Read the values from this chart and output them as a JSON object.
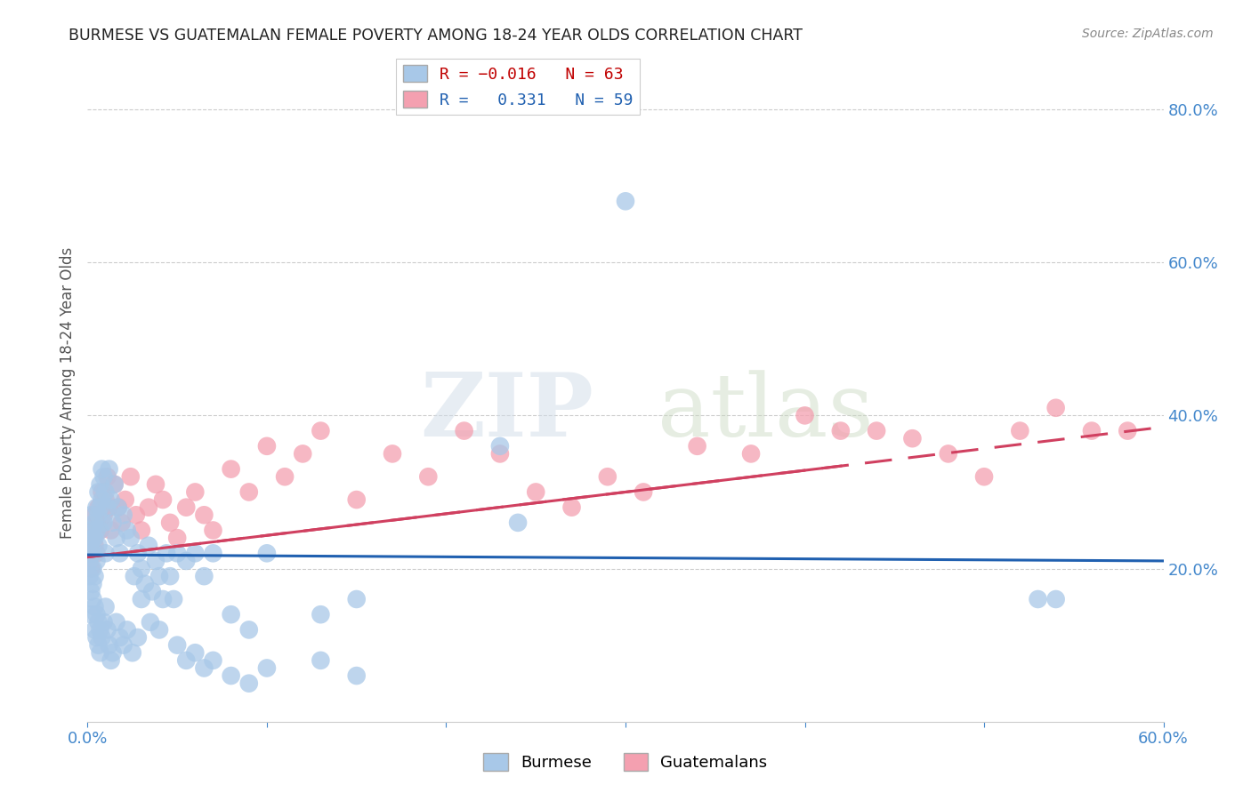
{
  "title": "BURMESE VS GUATEMALAN FEMALE POVERTY AMONG 18-24 YEAR OLDS CORRELATION CHART",
  "source": "Source: ZipAtlas.com",
  "ylabel": "Female Poverty Among 18-24 Year Olds",
  "xlim": [
    0.0,
    0.6
  ],
  "ylim": [
    0.0,
    0.86
  ],
  "xticks": [
    0.0,
    0.1,
    0.2,
    0.3,
    0.4,
    0.5,
    0.6
  ],
  "xticklabels": [
    "0.0%",
    "",
    "",
    "",
    "",
    "",
    "60.0%"
  ],
  "yticks_right": [
    0.2,
    0.4,
    0.6,
    0.8
  ],
  "ytick_right_labels": [
    "20.0%",
    "40.0%",
    "60.0%",
    "80.0%"
  ],
  "burmese_R": -0.016,
  "burmese_N": 63,
  "guatemalan_R": 0.331,
  "guatemalan_N": 59,
  "burmese_color": "#a8c8e8",
  "guatemalan_color": "#f4a0b0",
  "burmese_line_color": "#2060b0",
  "guatemalan_line_color": "#d04060",
  "legend_label_burmese": "Burmese",
  "legend_label_guatemalan": "Guatemalans",
  "watermark_zip": "ZIP",
  "watermark_atlas": "atlas",
  "burmese_x": [
    0.001,
    0.001,
    0.002,
    0.002,
    0.002,
    0.003,
    0.003,
    0.003,
    0.004,
    0.004,
    0.004,
    0.005,
    0.005,
    0.005,
    0.006,
    0.006,
    0.006,
    0.007,
    0.007,
    0.007,
    0.008,
    0.008,
    0.009,
    0.009,
    0.01,
    0.01,
    0.011,
    0.012,
    0.013,
    0.014,
    0.015,
    0.016,
    0.017,
    0.018,
    0.02,
    0.022,
    0.024,
    0.026,
    0.028,
    0.03,
    0.032,
    0.034,
    0.036,
    0.038,
    0.04,
    0.042,
    0.044,
    0.046,
    0.048,
    0.05,
    0.055,
    0.06,
    0.065,
    0.07,
    0.08,
    0.09,
    0.1,
    0.13,
    0.15,
    0.23,
    0.24,
    0.3,
    0.54
  ],
  "burmese_y": [
    0.22,
    0.21,
    0.25,
    0.23,
    0.27,
    0.24,
    0.22,
    0.2,
    0.26,
    0.24,
    0.19,
    0.28,
    0.25,
    0.21,
    0.3,
    0.27,
    0.23,
    0.31,
    0.28,
    0.25,
    0.33,
    0.29,
    0.32,
    0.26,
    0.3,
    0.22,
    0.28,
    0.33,
    0.29,
    0.26,
    0.31,
    0.24,
    0.28,
    0.22,
    0.27,
    0.25,
    0.24,
    0.19,
    0.22,
    0.2,
    0.18,
    0.23,
    0.17,
    0.21,
    0.19,
    0.16,
    0.22,
    0.19,
    0.16,
    0.22,
    0.21,
    0.22,
    0.19,
    0.22,
    0.14,
    0.12,
    0.22,
    0.14,
    0.16,
    0.36,
    0.26,
    0.68,
    0.16
  ],
  "burmese_x_low": [
    0.001,
    0.002,
    0.002,
    0.003,
    0.003,
    0.004,
    0.004,
    0.005,
    0.005,
    0.006,
    0.006,
    0.007,
    0.007,
    0.008,
    0.009,
    0.01,
    0.011,
    0.012,
    0.013,
    0.014,
    0.016,
    0.018,
    0.02,
    0.022,
    0.025,
    0.028,
    0.03,
    0.035,
    0.04,
    0.05,
    0.055,
    0.06,
    0.065,
    0.07,
    0.08,
    0.09,
    0.1,
    0.13,
    0.15,
    0.53
  ],
  "burmese_y_low": [
    0.19,
    0.17,
    0.14,
    0.16,
    0.18,
    0.15,
    0.12,
    0.14,
    0.11,
    0.13,
    0.1,
    0.12,
    0.09,
    0.11,
    0.13,
    0.15,
    0.12,
    0.1,
    0.08,
    0.09,
    0.13,
    0.11,
    0.1,
    0.12,
    0.09,
    0.11,
    0.16,
    0.13,
    0.12,
    0.1,
    0.08,
    0.09,
    0.07,
    0.08,
    0.06,
    0.05,
    0.07,
    0.08,
    0.06,
    0.16
  ],
  "guatemalan_x": [
    0.001,
    0.002,
    0.002,
    0.003,
    0.004,
    0.004,
    0.005,
    0.005,
    0.006,
    0.007,
    0.008,
    0.009,
    0.01,
    0.011,
    0.012,
    0.013,
    0.015,
    0.017,
    0.019,
    0.021,
    0.024,
    0.027,
    0.03,
    0.034,
    0.038,
    0.042,
    0.046,
    0.05,
    0.055,
    0.06,
    0.065,
    0.07,
    0.08,
    0.09,
    0.1,
    0.11,
    0.12,
    0.13,
    0.15,
    0.17,
    0.19,
    0.21,
    0.23,
    0.25,
    0.27,
    0.29,
    0.31,
    0.34,
    0.37,
    0.4,
    0.42,
    0.44,
    0.46,
    0.48,
    0.5,
    0.52,
    0.54,
    0.56,
    0.58
  ],
  "guatemalan_y": [
    0.22,
    0.25,
    0.2,
    0.24,
    0.27,
    0.23,
    0.26,
    0.22,
    0.28,
    0.25,
    0.3,
    0.27,
    0.29,
    0.32,
    0.28,
    0.25,
    0.31,
    0.28,
    0.26,
    0.29,
    0.32,
    0.27,
    0.25,
    0.28,
    0.31,
    0.29,
    0.26,
    0.24,
    0.28,
    0.3,
    0.27,
    0.25,
    0.33,
    0.3,
    0.36,
    0.32,
    0.35,
    0.38,
    0.29,
    0.35,
    0.32,
    0.38,
    0.35,
    0.3,
    0.28,
    0.32,
    0.3,
    0.36,
    0.35,
    0.4,
    0.38,
    0.38,
    0.37,
    0.35,
    0.32,
    0.38,
    0.41,
    0.38,
    0.38
  ],
  "burmese_trend_x": [
    0.0,
    0.6
  ],
  "burmese_trend_y": [
    0.218,
    0.21
  ],
  "guatemalan_trend_x": [
    0.0,
    0.6
  ],
  "guatemalan_trend_y": [
    0.215,
    0.385
  ]
}
